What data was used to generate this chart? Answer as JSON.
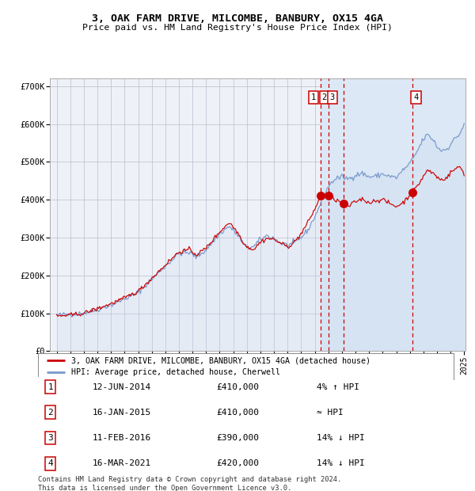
{
  "title1": "3, OAK FARM DRIVE, MILCOMBE, BANBURY, OX15 4GA",
  "title2": "Price paid vs. HM Land Registry's House Price Index (HPI)",
  "background_color": "#ffffff",
  "plot_bg_color": "#eef2f8",
  "grid_color": "#bbbbcc",
  "hpi_color": "#7799cc",
  "hpi_fill_color": "#c8d8ee",
  "price_color": "#cc0000",
  "sale_marker_color": "#cc0000",
  "dashed_line_color": "#cc0000",
  "legend1": "3, OAK FARM DRIVE, MILCOMBE, BANBURY, OX15 4GA (detached house)",
  "legend2": "HPI: Average price, detached house, Cherwell",
  "sales": [
    {
      "num": 1,
      "date": "12-JUN-2014",
      "price": 410000,
      "note": "4% ↑ HPI"
    },
    {
      "num": 2,
      "date": "16-JAN-2015",
      "price": 410000,
      "note": "≈ HPI"
    },
    {
      "num": 3,
      "date": "11-FEB-2016",
      "price": 390000,
      "note": "14% ↓ HPI"
    },
    {
      "num": 4,
      "date": "16-MAR-2021",
      "price": 420000,
      "note": "14% ↓ HPI"
    }
  ],
  "copyright": "Contains HM Land Registry data © Crown copyright and database right 2024.\nThis data is licensed under the Open Government Licence v3.0.",
  "ylim": [
    0,
    720000
  ],
  "yticks": [
    0,
    100000,
    200000,
    300000,
    400000,
    500000,
    600000,
    700000
  ],
  "start_year": 1995,
  "end_year": 2025,
  "hpi_anchors": {
    "1995.0": 95000,
    "1996.0": 97000,
    "1997.0": 100000,
    "1998.0": 110000,
    "1999.0": 122000,
    "2000.0": 138000,
    "2001.0": 155000,
    "2002.0": 190000,
    "2003.0": 225000,
    "2004.0": 258000,
    "2004.8": 260000,
    "2005.3": 248000,
    "2006.0": 268000,
    "2007.0": 310000,
    "2007.7": 330000,
    "2008.3": 308000,
    "2008.9": 275000,
    "2009.5": 275000,
    "2010.0": 295000,
    "2010.5": 305000,
    "2011.0": 298000,
    "2011.5": 285000,
    "2012.0": 280000,
    "2012.5": 285000,
    "2013.0": 300000,
    "2013.5": 320000,
    "2014.0": 355000,
    "2014.5": 395000,
    "2015.0": 435000,
    "2015.5": 455000,
    "2016.0": 460000,
    "2016.5": 455000,
    "2017.0": 465000,
    "2017.5": 470000,
    "2018.0": 460000,
    "2018.5": 462000,
    "2019.0": 468000,
    "2019.5": 462000,
    "2020.0": 458000,
    "2020.5": 478000,
    "2021.0": 495000,
    "2021.5": 525000,
    "2022.0": 560000,
    "2022.3": 572000,
    "2022.8": 555000,
    "2023.0": 540000,
    "2023.3": 530000,
    "2023.8": 535000,
    "2024.0": 548000,
    "2024.3": 560000,
    "2024.7": 575000,
    "2025.0": 600000
  },
  "price_anchors": {
    "1995.0": 92000,
    "1996.0": 95000,
    "1997.0": 100000,
    "1998.0": 112000,
    "1999.0": 125000,
    "2000.0": 140000,
    "2001.0": 158000,
    "2002.0": 192000,
    "2003.0": 228000,
    "2004.0": 262000,
    "2004.8": 268000,
    "2005.3": 254000,
    "2006.0": 272000,
    "2007.0": 315000,
    "2007.7": 340000,
    "2008.3": 315000,
    "2008.9": 278000,
    "2009.5": 268000,
    "2010.0": 288000,
    "2010.5": 298000,
    "2011.0": 295000,
    "2011.5": 285000,
    "2012.0": 275000,
    "2012.5": 288000,
    "2013.0": 310000,
    "2013.5": 340000,
    "2014.0": 375000,
    "2014.46": 410000,
    "2015.04": 410000,
    "2015.5": 400000,
    "2016.1": 390000,
    "2016.5": 382000,
    "2017.0": 395000,
    "2017.5": 402000,
    "2018.0": 392000,
    "2018.5": 398000,
    "2019.0": 400000,
    "2019.5": 390000,
    "2020.0": 382000,
    "2020.5": 392000,
    "2021.2": 420000,
    "2021.5": 432000,
    "2022.0": 462000,
    "2022.3": 478000,
    "2022.8": 468000,
    "2023.0": 460000,
    "2023.3": 452000,
    "2023.8": 460000,
    "2024.0": 472000,
    "2024.3": 480000,
    "2024.7": 488000,
    "2025.0": 468000
  }
}
